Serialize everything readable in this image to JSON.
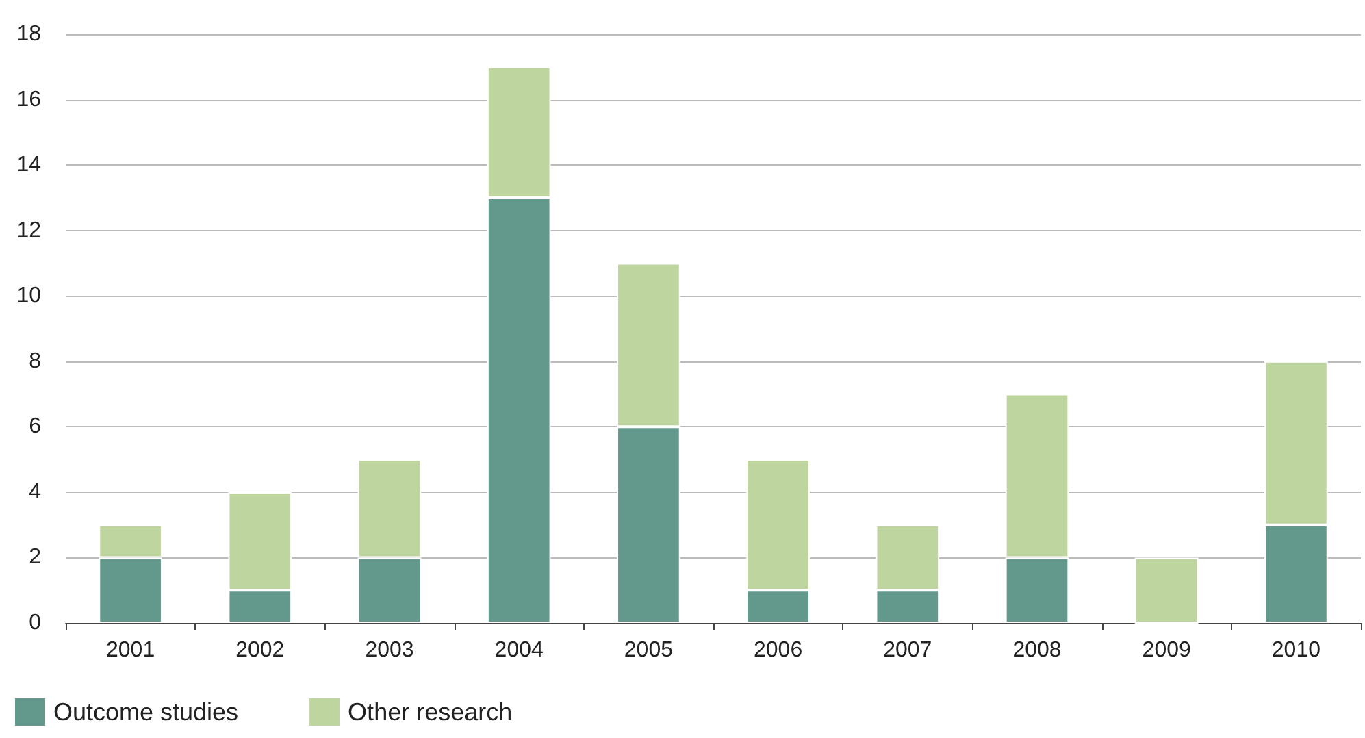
{
  "chart_data": {
    "type": "bar",
    "stacked": true,
    "categories": [
      "2001",
      "2002",
      "2003",
      "2004",
      "2005",
      "2006",
      "2007",
      "2008",
      "2009",
      "2010"
    ],
    "series": [
      {
        "name": "Outcome studies",
        "color": "#62998c",
        "values": [
          2,
          1,
          2,
          13,
          6,
          1,
          1,
          2,
          0,
          3
        ]
      },
      {
        "name": "Other research",
        "color": "#bfd59f",
        "values": [
          1,
          3,
          3,
          4,
          5,
          4,
          2,
          5,
          2,
          5
        ]
      }
    ],
    "ylim": [
      0,
      18
    ],
    "yticks": [
      0,
      2,
      4,
      6,
      8,
      10,
      12,
      14,
      16,
      18
    ],
    "grid": "y",
    "legend": "bottom left"
  }
}
